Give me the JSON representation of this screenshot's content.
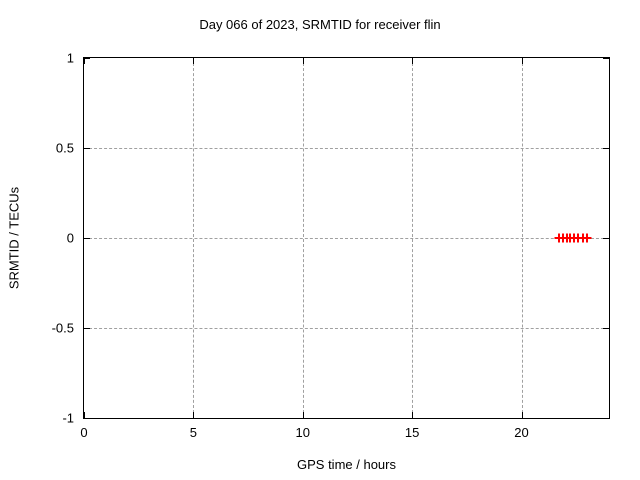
{
  "title": "Day 066 of 2023, SRMTID for receiver flin",
  "colors": {
    "background": "#ffffff",
    "axis": "#000000",
    "grid": "#a0a0a0",
    "series": "#ff0000",
    "text": "#000000"
  },
  "chart_data": {
    "type": "scatter",
    "title": "Day 066 of 2023, SRMTID for receiver flin",
    "xlabel": "GPS time / hours",
    "ylabel": "SRMTID / TECUs",
    "xlim": [
      0,
      24
    ],
    "ylim": [
      -1,
      1
    ],
    "xticks": [
      0,
      5,
      10,
      15,
      20
    ],
    "xtick_labels": [
      "0",
      "5",
      "10",
      "15",
      "20"
    ],
    "yticks": [
      -1,
      -0.5,
      0,
      0.5,
      1
    ],
    "ytick_labels": [
      "-1",
      "-0.5",
      "0",
      "0.5",
      "1"
    ],
    "grid": true,
    "grid_style": "dashed",
    "legend": false,
    "series": [
      {
        "marker": "plus",
        "color": "#ff0000",
        "points": [
          {
            "x": 21.7,
            "y": 0.0
          },
          {
            "x": 21.9,
            "y": 0.0
          },
          {
            "x": 22.1,
            "y": 0.0
          },
          {
            "x": 22.2,
            "y": 0.0
          },
          {
            "x": 22.4,
            "y": 0.0
          },
          {
            "x": 22.6,
            "y": 0.0
          },
          {
            "x": 22.8,
            "y": 0.0
          },
          {
            "x": 23.0,
            "y": 0.0
          }
        ]
      }
    ]
  }
}
